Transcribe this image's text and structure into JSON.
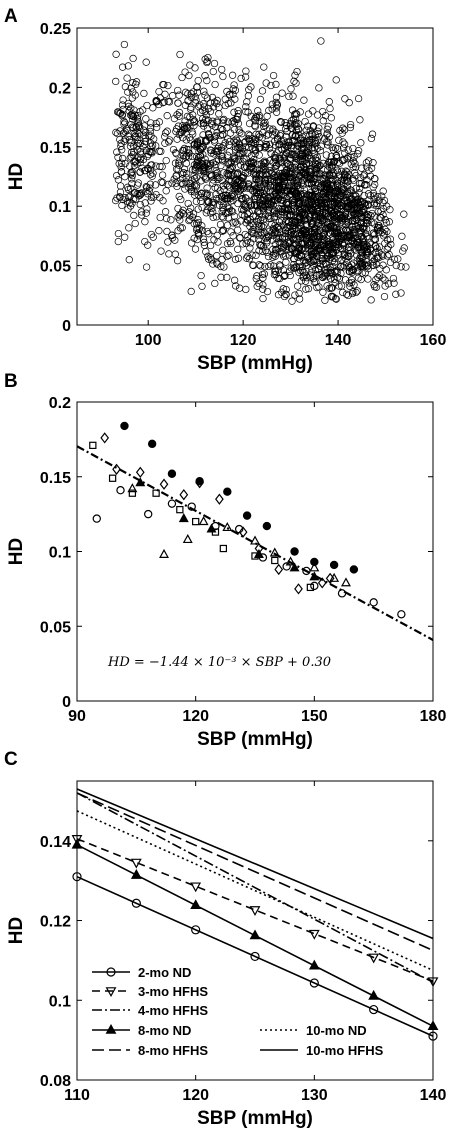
{
  "chart_data": [
    {
      "panel": "A",
      "type": "scatter",
      "xlabel": "SBP (mmHg)",
      "ylabel": "HD",
      "xlim": [
        85,
        160
      ],
      "ylim": [
        0,
        0.25
      ],
      "xticks": [
        100,
        120,
        140,
        160
      ],
      "yticks": [
        0,
        0.05,
        0.1,
        0.15,
        0.2,
        0.25
      ],
      "xtick_labels": [
        "100",
        "120",
        "140",
        "160"
      ],
      "ytick_labels": [
        "0",
        "0.05",
        "0.1",
        "0.15",
        "0.2",
        "0.25"
      ],
      "marker": "open-circle",
      "clusters": [
        {
          "x_center": 97,
          "y_center": 0.145,
          "x_spread": 3.2,
          "y_spread": 0.035,
          "count": 260
        },
        {
          "x_center": 111,
          "y_center": 0.13,
          "x_spread": 5,
          "y_spread": 0.04,
          "count": 420
        },
        {
          "x_center": 122,
          "y_center": 0.115,
          "x_spread": 6,
          "y_spread": 0.04,
          "count": 480
        },
        {
          "x_center": 134,
          "y_center": 0.1,
          "x_spread": 6.5,
          "y_spread": 0.04,
          "count": 1400
        },
        {
          "x_center": 144,
          "y_center": 0.085,
          "x_spread": 4,
          "y_spread": 0.03,
          "count": 320
        }
      ]
    },
    {
      "panel": "B",
      "type": "scatter",
      "xlabel": "SBP (mmHg)",
      "ylabel": "HD",
      "xlim": [
        90,
        180
      ],
      "ylim": [
        0,
        0.2
      ],
      "xticks": [
        90,
        120,
        150,
        180
      ],
      "yticks": [
        0,
        0.05,
        0.1,
        0.15,
        0.2
      ],
      "xtick_labels": [
        "90",
        "120",
        "150",
        "180"
      ],
      "ytick_labels": [
        "0",
        "0.05",
        "0.1",
        "0.15",
        "0.2"
      ],
      "fit_line": {
        "slope": -0.00144,
        "intercept": 0.3
      },
      "equation_text": "HD = −1.44 × 10⁻³ × SBP + 0.30",
      "groups": [
        {
          "marker": "open-circle",
          "points": [
            [
              95,
              0.122
            ],
            [
              101,
              0.141
            ],
            [
              108,
              0.125
            ],
            [
              114,
              0.132
            ],
            [
              119,
              0.13
            ],
            [
              125,
              0.117
            ],
            [
              131,
              0.115
            ],
            [
              137,
              0.096
            ],
            [
              143,
              0.09
            ],
            [
              148,
              0.087
            ],
            [
              150,
              0.077
            ],
            [
              157,
              0.072
            ],
            [
              165,
              0.066
            ],
            [
              172,
              0.058
            ]
          ]
        },
        {
          "marker": "filled-circle",
          "points": [
            [
              102,
              0.184
            ],
            [
              109,
              0.172
            ],
            [
              114,
              0.152
            ],
            [
              121,
              0.147
            ],
            [
              128,
              0.14
            ],
            [
              133,
              0.124
            ],
            [
              138,
              0.117
            ],
            [
              145,
              0.1
            ],
            [
              150,
              0.093
            ],
            [
              155,
              0.091
            ],
            [
              160,
              0.088
            ]
          ]
        },
        {
          "marker": "open-square",
          "points": [
            [
              94,
              0.171
            ],
            [
              99,
              0.149
            ],
            [
              104,
              0.139
            ],
            [
              110,
              0.139
            ],
            [
              116,
              0.128
            ],
            [
              120,
              0.12
            ],
            [
              125,
              0.113
            ],
            [
              127,
              0.102
            ],
            [
              135,
              0.097
            ],
            [
              140,
              0.094
            ],
            [
              149,
              0.076
            ]
          ]
        },
        {
          "marker": "open-diamond",
          "points": [
            [
              97,
              0.176
            ],
            [
              100,
              0.155
            ],
            [
              106,
              0.153
            ],
            [
              112,
              0.145
            ],
            [
              117,
              0.138
            ],
            [
              121,
              0.146
            ],
            [
              126,
              0.135
            ],
            [
              132,
              0.113
            ],
            [
              136,
              0.102
            ],
            [
              141,
              0.088
            ],
            [
              146,
              0.075
            ],
            [
              152,
              0.079
            ],
            [
              154,
              0.082
            ]
          ]
        },
        {
          "marker": "open-triangle",
          "points": [
            [
              104,
              0.142
            ],
            [
              112,
              0.098
            ],
            [
              118,
              0.108
            ],
            [
              122,
              0.12
            ],
            [
              128,
              0.116
            ],
            [
              135,
              0.107
            ],
            [
              140,
              0.099
            ],
            [
              144,
              0.093
            ],
            [
              150,
              0.089
            ],
            [
              155,
              0.082
            ],
            [
              158,
              0.079
            ]
          ]
        },
        {
          "marker": "filled-triangle",
          "points": [
            [
              106,
              0.146
            ],
            [
              117,
              0.122
            ],
            [
              124,
              0.115
            ],
            [
              136,
              0.098
            ],
            [
              145,
              0.089
            ],
            [
              150,
              0.083
            ]
          ]
        }
      ]
    },
    {
      "panel": "C",
      "type": "line",
      "xlabel": "SBP (mmHg)",
      "ylabel": "HD",
      "xlim": [
        110,
        140
      ],
      "ylim": [
        0.08,
        0.155
      ],
      "xticks": [
        110,
        120,
        130,
        140
      ],
      "yticks": [
        0.08,
        0.1,
        0.12,
        0.14
      ],
      "xtick_labels": [
        "110",
        "120",
        "130",
        "140"
      ],
      "ytick_labels": [
        "0.08",
        "0.1",
        "0.12",
        "0.14"
      ],
      "series": [
        {
          "name": "2-mo ND",
          "style": "solid",
          "marker": "open-circle",
          "y_at_110": 0.131,
          "y_at_140": 0.091
        },
        {
          "name": "3-mo HFHS",
          "style": "dashed",
          "marker": "open-triangle-down",
          "y_at_110": 0.1405,
          "y_at_140": 0.1048
        },
        {
          "name": "4-mo HFHS",
          "style": "dashdot",
          "marker": "none",
          "y_at_110": 0.152,
          "y_at_140": 0.1045
        },
        {
          "name": "8-mo ND",
          "style": "solid",
          "marker": "filled-triangle",
          "y_at_110": 0.139,
          "y_at_140": 0.0935
        },
        {
          "name": "8-mo HFHS",
          "style": "dashed-long",
          "marker": "none",
          "y_at_110": 0.152,
          "y_at_140": 0.1125
        },
        {
          "name": "10-mo ND",
          "style": "dotted",
          "marker": "none",
          "y_at_110": 0.1475,
          "y_at_140": 0.1075
        },
        {
          "name": "10-mo HFHS",
          "style": "solid",
          "marker": "none",
          "y_at_110": 0.153,
          "y_at_140": 0.1155
        }
      ],
      "legend_position": "lower-left"
    }
  ],
  "panel_labels": [
    "A",
    "B",
    "C"
  ]
}
